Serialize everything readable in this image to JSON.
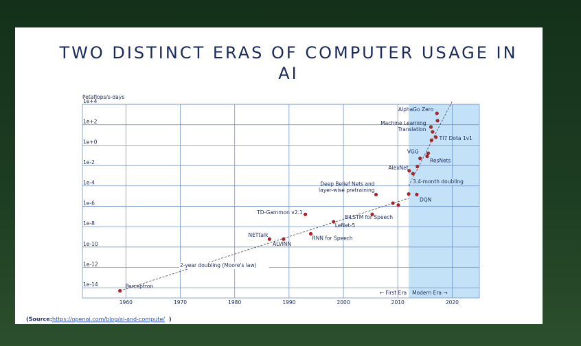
{
  "chart_data": {
    "type": "scatter",
    "title": "TWO DISTINCT ERAS OF COMPUTER USAGE IN AI",
    "y_label": "Petaflops/s-days",
    "log_y": true,
    "grid": true,
    "xlim": [
      1952,
      2025
    ],
    "ylim": [
      1e-15,
      10000
    ],
    "xticks": [
      1960,
      1970,
      1980,
      1990,
      2000,
      2010,
      2020
    ],
    "yticks": [
      {
        "value": 10000,
        "label": "1e+4"
      },
      {
        "value": 100,
        "label": "1e+2"
      },
      {
        "value": 1,
        "label": "1e+0"
      },
      {
        "value": 0.01,
        "label": "1e-2"
      },
      {
        "value": 0.0001,
        "label": "1e-4"
      },
      {
        "value": 1e-06,
        "label": "1e-6"
      },
      {
        "value": 1e-08,
        "label": "1e-8"
      },
      {
        "value": 1e-10,
        "label": "1e-10"
      },
      {
        "value": 1e-12,
        "label": "1e-12"
      },
      {
        "value": 1e-14,
        "label": "1e-14"
      }
    ],
    "series": [
      {
        "color": "#a3262b",
        "x": [
          1958.9,
          1986.4,
          1989.0,
          1993.0,
          1994.0,
          1998.2,
          2005.3,
          2006.0,
          2009.1,
          2010.1,
          2012.0,
          2013.5,
          2012.1,
          2012.8,
          2013.6,
          2014.1,
          2015.4,
          2015.6,
          2016.2,
          2017.0,
          2016.1,
          2016.4,
          2017.2,
          2017.3
        ],
        "values": [
          5e-15,
          6e-10,
          6e-10,
          1.6e-07,
          2e-09,
          3e-08,
          1.6e-07,
          1.4e-05,
          2e-06,
          1.3e-06,
          1.6e-05,
          1.4e-05,
          0.003,
          0.0016,
          0.008,
          0.05,
          0.08,
          0.16,
          3,
          6,
          60,
          20,
          1300,
          250
        ],
        "point_labels": [
          "Perceptron",
          "NETtalk",
          "ALVINN",
          "TD-Gammon v2.1",
          "RNN for Speech",
          "LeNet-5",
          "BiLSTM for Speech",
          [
            "Deep Belief Nets and",
            "layer-wise pretraining"
          ],
          null,
          null,
          null,
          "DQN",
          "AlexNet",
          null,
          null,
          "VGG",
          "ResNets",
          null,
          null,
          "TI7 Dota 1v1",
          [
            "Machine Learning",
            "Translation"
          ],
          null,
          "AlphaGo Zero",
          null
        ]
      }
    ],
    "trend_lines": [
      {
        "label": "2-year doubling (Moore's law)",
        "x": [
          1958.9,
          2012
        ],
        "values": [
          5e-15,
          6e-06
        ]
      },
      {
        "label": "3.4-month doubling",
        "x": [
          2012,
          2020
        ],
        "values": [
          0.0001,
          20000
        ]
      }
    ],
    "modern_era_start": 2012,
    "shade_color": "#c3e1f7",
    "era_labels": [
      "← First Era",
      "Modern Era →"
    ],
    "source": {
      "prefix": "(Source:",
      "url": "https://openai.com/blog/ai-and-compute/",
      "suffix": ")"
    }
  }
}
